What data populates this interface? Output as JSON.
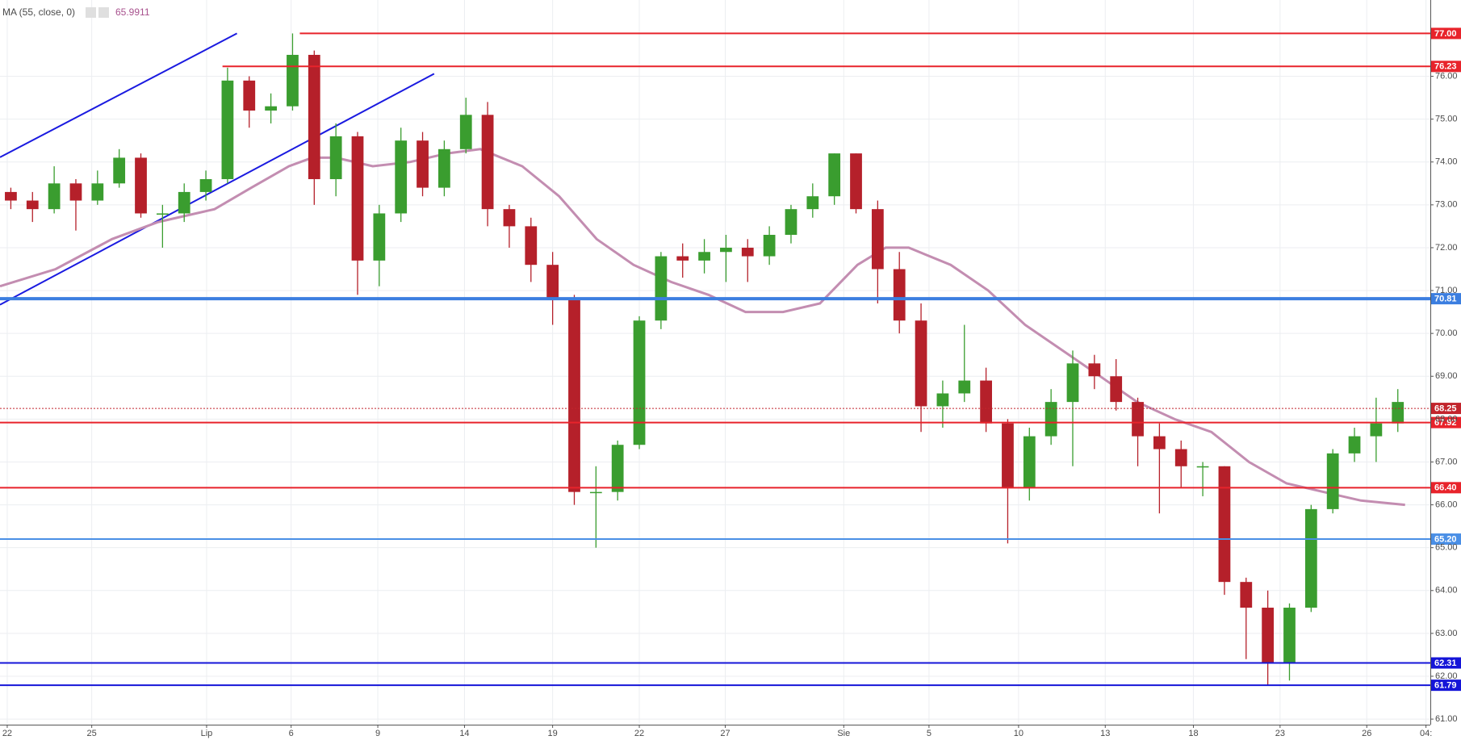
{
  "chart_data": {
    "type": "candlestick",
    "indicator_label": "MA (55, close, 0)",
    "indicator_value": 65.9911,
    "xlim": [
      0,
      198
    ],
    "ylim": [
      60.87,
      77.78
    ],
    "grid": true,
    "xticks": [
      {
        "value": 1,
        "label": "22"
      },
      {
        "value": 12.7,
        "label": "25"
      },
      {
        "value": 28.6,
        "label": "Lip"
      },
      {
        "value": 40.3,
        "label": "6"
      },
      {
        "value": 52.3,
        "label": "9"
      },
      {
        "value": 64.3,
        "label": "14"
      },
      {
        "value": 76.5,
        "label": "19"
      },
      {
        "value": 88.5,
        "label": "22"
      },
      {
        "value": 100.4,
        "label": "27"
      },
      {
        "value": 116.8,
        "label": "Sie"
      },
      {
        "value": 128.6,
        "label": "5"
      },
      {
        "value": 141,
        "label": "10"
      },
      {
        "value": 153,
        "label": "13"
      },
      {
        "value": 165.2,
        "label": "18"
      },
      {
        "value": 177.2,
        "label": "23"
      },
      {
        "value": 189.2,
        "label": "26"
      },
      {
        "value": 197.4,
        "label": "04:"
      }
    ],
    "yticks": [
      {
        "value": 61,
        "label": "61.00"
      },
      {
        "value": 62,
        "label": "62.00"
      },
      {
        "value": 63,
        "label": "63.00"
      },
      {
        "value": 64,
        "label": "64.00"
      },
      {
        "value": 65,
        "label": "65.00"
      },
      {
        "value": 66,
        "label": "66.00"
      },
      {
        "value": 67,
        "label": "67.00"
      },
      {
        "value": 68,
        "label": "68.00"
      },
      {
        "value": 69,
        "label": "69.00"
      },
      {
        "value": 70,
        "label": "70.00"
      },
      {
        "value": 71,
        "label": "71.00"
      },
      {
        "value": 72,
        "label": "72.00"
      },
      {
        "value": 73,
        "label": "73.00"
      },
      {
        "value": 74,
        "label": "74.00"
      },
      {
        "value": 75,
        "label": "75.00"
      },
      {
        "value": 76,
        "label": "76.00"
      }
    ],
    "up_color": "#3a9d2f",
    "down_color": "#b5202a",
    "candles": {
      "x": [
        1.5,
        4.5,
        7.5,
        10.5,
        13.5,
        16.5,
        19.5,
        22.5,
        25.5,
        28.5,
        31.5,
        34.5,
        37.5,
        40.5,
        43.5,
        46.5,
        49.5,
        52.5,
        55.5,
        58.5,
        61.5,
        64.5,
        67.5,
        70.5,
        73.5,
        76.5,
        79.5,
        82.5,
        85.5,
        88.5,
        91.5,
        94.5,
        97.5,
        100.5,
        103.5,
        106.5,
        109.5,
        112.5,
        115.5,
        118.5,
        121.5,
        124.5,
        127.5,
        130.5,
        133.5,
        136.5,
        139.5,
        142.5,
        145.5,
        148.5,
        151.5,
        154.5,
        157.5,
        160.5,
        163.5,
        166.5,
        169.5,
        172.5,
        175.5,
        178.5,
        181.5,
        184.5,
        187.5,
        190.5,
        193.5
      ],
      "ohlc": [
        [
          73.3,
          73.4,
          72.9,
          73.1
        ],
        [
          73.1,
          73.3,
          72.6,
          72.9
        ],
        [
          72.9,
          73.9,
          72.8,
          73.5
        ],
        [
          73.5,
          73.6,
          72.4,
          73.1
        ],
        [
          73.1,
          73.8,
          73.0,
          73.5
        ],
        [
          73.5,
          74.3,
          73.4,
          74.1
        ],
        [
          74.1,
          74.2,
          72.7,
          72.8
        ],
        [
          72.8,
          73.0,
          72.0,
          72.8
        ],
        [
          72.8,
          73.5,
          72.6,
          73.3
        ],
        [
          73.3,
          73.8,
          73.1,
          73.6
        ],
        [
          73.6,
          76.2,
          73.5,
          75.9
        ],
        [
          75.9,
          76.0,
          74.8,
          75.2
        ],
        [
          75.2,
          75.6,
          74.9,
          75.3
        ],
        [
          75.3,
          77.0,
          75.2,
          76.5
        ],
        [
          76.5,
          76.6,
          73.0,
          73.6
        ],
        [
          73.6,
          74.9,
          73.2,
          74.6
        ],
        [
          74.6,
          74.7,
          70.9,
          71.7
        ],
        [
          71.7,
          73.0,
          71.1,
          72.8
        ],
        [
          72.8,
          74.8,
          72.6,
          74.5
        ],
        [
          74.5,
          74.7,
          73.2,
          73.4
        ],
        [
          73.4,
          74.5,
          73.2,
          74.3
        ],
        [
          74.3,
          75.5,
          74.2,
          75.1
        ],
        [
          75.1,
          75.4,
          72.5,
          72.9
        ],
        [
          72.9,
          73.0,
          72.0,
          72.5
        ],
        [
          72.5,
          72.7,
          71.2,
          71.6
        ],
        [
          71.6,
          71.9,
          70.2,
          70.8
        ],
        [
          70.8,
          70.9,
          66.0,
          66.3
        ],
        [
          66.3,
          66.9,
          65.0,
          66.3
        ],
        [
          66.3,
          67.5,
          66.1,
          67.4
        ],
        [
          67.4,
          70.4,
          67.3,
          70.3
        ],
        [
          70.3,
          71.9,
          70.1,
          71.8
        ],
        [
          71.8,
          72.1,
          71.3,
          71.7
        ],
        [
          71.7,
          72.2,
          71.4,
          71.9
        ],
        [
          71.9,
          72.3,
          71.2,
          72.0
        ],
        [
          72.0,
          72.2,
          71.2,
          71.8
        ],
        [
          71.8,
          72.5,
          71.6,
          72.3
        ],
        [
          72.3,
          73.0,
          72.1,
          72.9
        ],
        [
          72.9,
          73.5,
          72.7,
          73.2
        ],
        [
          73.2,
          74.2,
          73.0,
          74.2
        ],
        [
          74.2,
          74.2,
          72.8,
          72.9
        ],
        [
          72.9,
          73.1,
          70.7,
          71.5
        ],
        [
          71.5,
          71.9,
          70.0,
          70.3
        ],
        [
          70.3,
          70.7,
          67.7,
          68.3
        ],
        [
          68.3,
          68.9,
          67.8,
          68.6
        ],
        [
          68.6,
          70.2,
          68.4,
          68.9
        ],
        [
          68.9,
          69.2,
          67.7,
          67.9
        ],
        [
          67.9,
          68.0,
          65.1,
          66.4
        ],
        [
          66.4,
          67.8,
          66.1,
          67.6
        ],
        [
          67.6,
          68.7,
          67.4,
          68.4
        ],
        [
          68.4,
          69.6,
          66.9,
          69.3
        ],
        [
          69.3,
          69.5,
          68.7,
          69.0
        ],
        [
          69.0,
          69.4,
          68.2,
          68.4
        ],
        [
          68.4,
          68.5,
          66.9,
          67.6
        ],
        [
          67.6,
          67.9,
          65.8,
          67.3
        ],
        [
          67.3,
          67.5,
          66.4,
          66.9
        ],
        [
          66.9,
          67.0,
          66.2,
          66.9
        ],
        [
          66.9,
          66.9,
          63.9,
          64.2
        ],
        [
          64.2,
          64.3,
          62.4,
          63.6
        ],
        [
          63.6,
          64.0,
          61.8,
          62.3
        ],
        [
          62.3,
          63.7,
          61.9,
          63.6
        ],
        [
          63.6,
          66.0,
          63.5,
          65.9
        ],
        [
          65.9,
          67.3,
          65.8,
          67.2
        ],
        [
          67.2,
          67.8,
          67.0,
          67.6
        ],
        [
          67.6,
          68.5,
          67.0,
          67.9
        ],
        [
          67.9,
          68.7,
          67.7,
          68.4
        ]
      ]
    },
    "ma": {
      "color": "#c38db1",
      "x": [
        0,
        7.7,
        15.5,
        21.9,
        29.7,
        34.8,
        40,
        43.2,
        46.5,
        51.6,
        56.8,
        61.9,
        66.5,
        72.3,
        77.4,
        82.6,
        87.7,
        92.9,
        98.1,
        103.2,
        108.4,
        113.5,
        118.7,
        122.6,
        125.8,
        131.6,
        136.8,
        141.9,
        147.1,
        152.3,
        157.4,
        162.6,
        167.7,
        172.9,
        178.1,
        183.2,
        188.4,
        194.5
      ],
      "values": [
        71.1,
        71.5,
        72.2,
        72.6,
        72.9,
        73.4,
        73.9,
        74.1,
        74.1,
        73.9,
        74.0,
        74.2,
        74.3,
        73.9,
        73.2,
        72.2,
        71.6,
        71.2,
        70.9,
        70.5,
        70.5,
        70.7,
        71.6,
        72.0,
        72.0,
        71.6,
        71.0,
        70.2,
        69.6,
        69.0,
        68.4,
        68.0,
        67.7,
        67.0,
        66.5,
        66.3,
        66.1,
        66.0
      ]
    },
    "trendlines": [
      {
        "color": "#1a1ae0",
        "x": [
          0,
          32.8
        ],
        "y": [
          74.11,
          77.0
        ]
      },
      {
        "color": "#1a1ae0",
        "x": [
          0,
          60.1
        ],
        "y": [
          70.67,
          76.06
        ]
      }
    ],
    "hlines": [
      {
        "value": 77.0,
        "label": "77.00",
        "color": "#e8232b",
        "width": 2,
        "start": 41.5
      },
      {
        "value": 76.23,
        "label": "76.23",
        "color": "#e8232b",
        "width": 2,
        "start": 30.8
      },
      {
        "value": 70.81,
        "label": "70.81",
        "color": "#3b7ee0",
        "width": 4
      },
      {
        "value": 68.25,
        "label": "68.25",
        "color": "#c2242c",
        "width": 1,
        "dash": true
      },
      {
        "value": 67.92,
        "label": "67.92",
        "color": "#e8232b",
        "width": 2
      },
      {
        "value": 66.4,
        "label": "66.40",
        "color": "#e8232b",
        "width": 2
      },
      {
        "value": 65.2,
        "label": "65.20",
        "color": "#4a8fe6",
        "width": 2
      },
      {
        "value": 62.31,
        "label": "62.31",
        "color": "#1515d8",
        "width": 2
      },
      {
        "value": 61.79,
        "label": "61.79",
        "color": "#1515d8",
        "width": 2
      }
    ]
  }
}
